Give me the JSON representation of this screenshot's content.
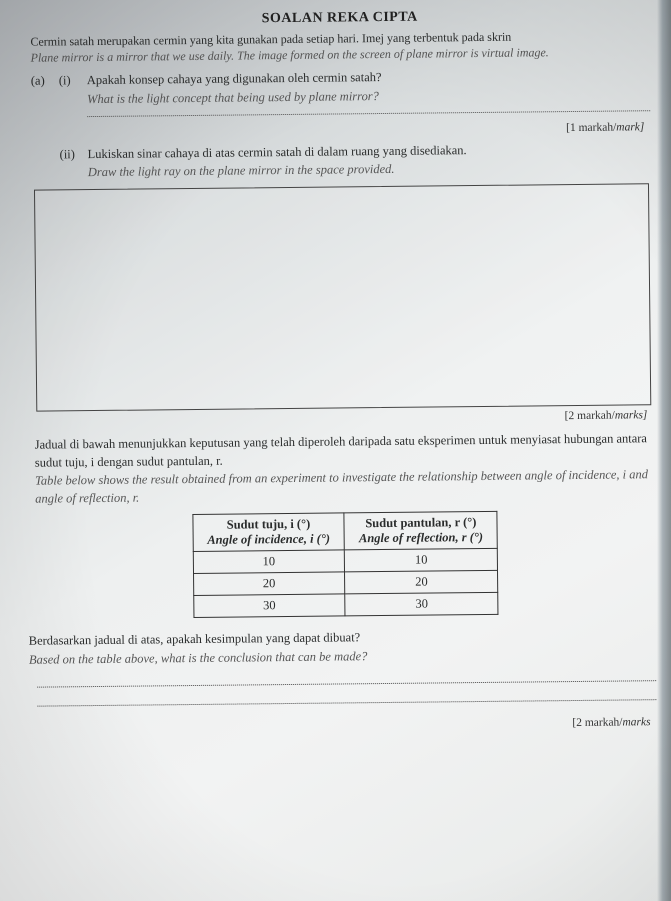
{
  "title": "SOALAN REKA CIPTA",
  "intro": {
    "ms": "Cermin satah merupakan cermin yang kita gunakan pada setiap hari. Imej yang terbentuk pada skrin",
    "en": "Plane mirror is a mirror that we use daily. The image formed on the screen of plane mirror is virtual image."
  },
  "labels": {
    "a": "(a)",
    "i": "(i)",
    "ii": "(ii)"
  },
  "q_a_i": {
    "ms": "Apakah konsep cahaya yang digunakan oleh cermin satah?",
    "en": "What is the light concept that being used by plane mirror?"
  },
  "marks1": {
    "ms": "[1 markah/",
    "en": "mark]"
  },
  "q_a_ii": {
    "ms": "Lukiskan sinar cahaya di atas cermin satah di dalam ruang yang disediakan.",
    "en": "Draw the light ray on the plane mirror in the space provided."
  },
  "marks2": {
    "ms": "[2 markah/",
    "en": "marks]"
  },
  "para1": {
    "ms": "Jadual di bawah menunjukkan keputusan yang telah diperoleh daripada satu eksperimen untuk menyiasat hubungan antara sudut tuju, i dengan sudut pantulan, r.",
    "en": "Table below shows the result obtained from an experiment to investigate the relationship between angle of incidence, i and angle of reflection, r."
  },
  "table": {
    "head": {
      "c1_ms": "Sudut tuju, i (°)",
      "c1_en": "Angle of incidence, i (°)",
      "c2_ms": "Sudut pantulan, r (°)",
      "c2_en": "Angle of reflection, r (°)"
    },
    "rows": [
      {
        "i": "10",
        "r": "10"
      },
      {
        "i": "20",
        "r": "20"
      },
      {
        "i": "30",
        "r": "30"
      }
    ]
  },
  "para2": {
    "ms": "Berdasarkan jadual di atas, apakah kesimpulan yang dapat dibuat?",
    "en": "Based on the table above, what is the conclusion that can be made?"
  },
  "marks3": {
    "ms": "[2 markah/",
    "en": "marks"
  }
}
